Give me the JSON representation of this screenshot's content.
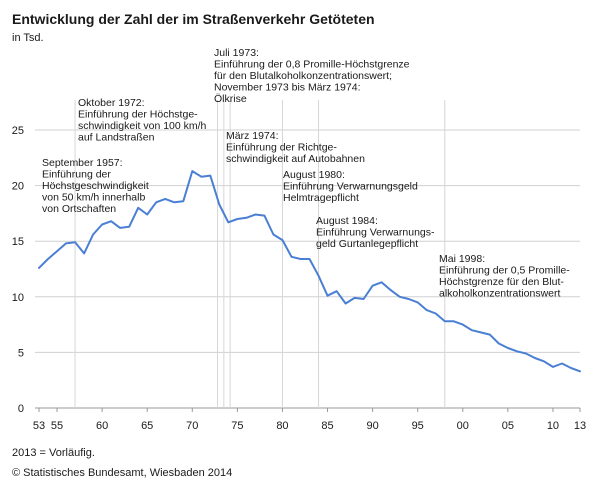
{
  "chart_data": {
    "type": "line",
    "title": "Entwicklung der Zahl der im Straßenverkehr Getöteten",
    "subtitle": "in Tsd.",
    "ylim": [
      0,
      25
    ],
    "yticks": [
      0,
      5,
      10,
      15,
      20,
      25
    ],
    "xticks": [
      {
        "year": 1953,
        "label": "53"
      },
      {
        "year": 1955,
        "label": "55"
      },
      {
        "year": 1960,
        "label": "60"
      },
      {
        "year": 1965,
        "label": "65"
      },
      {
        "year": 1970,
        "label": "70"
      },
      {
        "year": 1975,
        "label": "75"
      },
      {
        "year": 1980,
        "label": "80"
      },
      {
        "year": 1985,
        "label": "85"
      },
      {
        "year": 1990,
        "label": "90"
      },
      {
        "year": 1995,
        "label": "95"
      },
      {
        "year": 2000,
        "label": "00"
      },
      {
        "year": 2005,
        "label": "05"
      },
      {
        "year": 2010,
        "label": "10"
      },
      {
        "year": 2013,
        "label": "13"
      }
    ],
    "grid": true,
    "line_color": "#4a7fd4",
    "x": [
      1953,
      1954,
      1955,
      1956,
      1957,
      1958,
      1959,
      1960,
      1961,
      1962,
      1963,
      1964,
      1965,
      1966,
      1967,
      1968,
      1969,
      1970,
      1971,
      1972,
      1973,
      1974,
      1975,
      1976,
      1977,
      1978,
      1979,
      1980,
      1981,
      1982,
      1983,
      1984,
      1985,
      1986,
      1987,
      1988,
      1989,
      1990,
      1991,
      1992,
      1993,
      1994,
      1995,
      1996,
      1997,
      1998,
      1999,
      2000,
      2001,
      2002,
      2003,
      2004,
      2005,
      2006,
      2007,
      2008,
      2009,
      2010,
      2011,
      2012,
      2013
    ],
    "y": [
      12.6,
      13.4,
      14.1,
      14.8,
      14.9,
      13.9,
      15.6,
      16.5,
      16.8,
      16.2,
      16.3,
      18.0,
      17.4,
      18.5,
      18.8,
      18.5,
      18.6,
      21.3,
      20.8,
      20.9,
      18.3,
      16.7,
      17.0,
      17.1,
      17.4,
      17.3,
      15.6,
      15.1,
      13.6,
      13.4,
      13.4,
      11.9,
      10.1,
      10.5,
      9.4,
      9.9,
      9.8,
      11.0,
      11.3,
      10.6,
      10.0,
      9.8,
      9.5,
      8.8,
      8.5,
      7.8,
      7.8,
      7.5,
      7.0,
      6.8,
      6.6,
      5.8,
      5.4,
      5.1,
      4.9,
      4.5,
      4.2,
      3.7,
      4.0,
      3.6,
      3.3
    ],
    "annotations": [
      {
        "year": 1957,
        "lines": [
          "September 1957:",
          "Einführung der",
          "Höchstgeschwindigkeit",
          "von 50 km/h innerhalb",
          "von Ortschaften"
        ]
      },
      {
        "year": 1972.8,
        "lines": [
          "Oktober 1972:",
          "Einführung der Höchstge-",
          "schwindigkeit von 100 km/h",
          "auf Landstraßen"
        ]
      },
      {
        "year": 1973.5,
        "lines": [
          "Juli 1973:",
          "Einführung der 0,8 Promille-Höchstgrenze",
          "für den Blutalkoholkonzentrationswert;",
          "November 1973 bis März 1974:",
          "Ölkrise"
        ]
      },
      {
        "year": 1974.2,
        "lines": [
          "März 1974:",
          "Einführung der Richtge-",
          "schwindigkeit auf Autobahnen"
        ]
      },
      {
        "year": 1980,
        "lines": [
          "August 1980:",
          "Einführung Verwarnungsgeld",
          "Helmtragepflicht"
        ]
      },
      {
        "year": 1984,
        "lines": [
          "August 1984:",
          "Einführung Verwarnungs-",
          "geld Gurtanlegepflicht"
        ]
      },
      {
        "year": 1998,
        "lines": [
          "Mai 1998:",
          "Einführung der 0,5 Promille-",
          "Höchstgrenze für den Blut-",
          "alkoholkonzentrationswert"
        ]
      }
    ]
  },
  "footnote": "2013 = Vorläufig.",
  "source": "© Statistisches Bundesamt, Wiesbaden 2014"
}
